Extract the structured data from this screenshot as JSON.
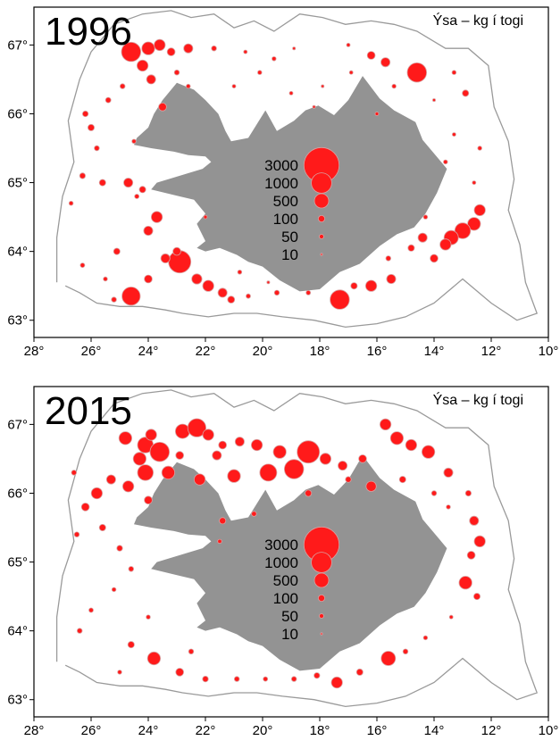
{
  "panels": [
    {
      "year": "1996",
      "species_label": "Ýsa – kg í togi",
      "x_ticks": [
        "28°",
        "26°",
        "24°",
        "22°",
        "20°",
        "18°",
        "16°",
        "14°",
        "12°",
        "10°"
      ],
      "y_ticks": [
        "67°",
        "66°",
        "65°",
        "64°",
        "63°"
      ],
      "legend": [
        {
          "label": "3000",
          "value": 3000
        },
        {
          "label": "1000",
          "value": 1000
        },
        {
          "label": "500",
          "value": 500
        },
        {
          "label": "100",
          "value": 100
        },
        {
          "label": "50",
          "value": 50
        },
        {
          "label": "10",
          "value": 10
        }
      ]
    },
    {
      "year": "2015",
      "species_label": "Ýsa – kg í togi",
      "x_ticks": [
        "28°",
        "26°",
        "24°",
        "22°",
        "20°",
        "18°",
        "16°",
        "14°",
        "12°",
        "10°"
      ],
      "y_ticks": [
        "67°",
        "66°",
        "65°",
        "64°",
        "63°"
      ],
      "legend": [
        {
          "label": "3000",
          "value": 3000
        },
        {
          "label": "1000",
          "value": 1000
        },
        {
          "label": "500",
          "value": 500
        },
        {
          "label": "100",
          "value": 100
        },
        {
          "label": "50",
          "value": 50
        },
        {
          "label": "10",
          "value": 10
        }
      ]
    }
  ],
  "colors": {
    "bubble": "#ff1a1a",
    "land": "#939393",
    "contour": "#9a9a9a"
  },
  "stations_1996": [
    [
      24.6,
      66.9,
      900
    ],
    [
      24.0,
      66.95,
      400
    ],
    [
      23.6,
      67.0,
      300
    ],
    [
      23.2,
      66.9,
      150
    ],
    [
      22.6,
      66.95,
      200
    ],
    [
      21.7,
      66.95,
      60
    ],
    [
      20.6,
      66.9,
      30
    ],
    [
      19.6,
      66.8,
      40
    ],
    [
      18.9,
      66.95,
      20
    ],
    [
      17.0,
      67.0,
      30
    ],
    [
      16.2,
      66.85,
      150
    ],
    [
      15.7,
      66.75,
      200
    ],
    [
      14.6,
      66.6,
      900
    ],
    [
      13.3,
      66.6,
      40
    ],
    [
      12.9,
      66.3,
      100
    ],
    [
      12.4,
      65.5,
      40
    ],
    [
      12.6,
      65.0,
      30
    ],
    [
      12.4,
      64.6,
      300
    ],
    [
      12.6,
      64.4,
      400
    ],
    [
      13.0,
      64.3,
      600
    ],
    [
      13.4,
      64.2,
      500
    ],
    [
      13.6,
      64.1,
      300
    ],
    [
      14.0,
      63.9,
      150
    ],
    [
      14.4,
      64.2,
      200
    ],
    [
      14.8,
      64.05,
      100
    ],
    [
      15.5,
      63.6,
      200
    ],
    [
      16.2,
      63.5,
      300
    ],
    [
      16.8,
      63.5,
      100
    ],
    [
      17.3,
      63.3,
      900
    ],
    [
      18.4,
      63.4,
      50
    ],
    [
      19.5,
      63.4,
      60
    ],
    [
      20.5,
      63.35,
      50
    ],
    [
      21.1,
      63.3,
      120
    ],
    [
      21.4,
      63.4,
      200
    ],
    [
      21.9,
      63.5,
      300
    ],
    [
      22.3,
      63.6,
      250
    ],
    [
      22.9,
      63.85,
      1200
    ],
    [
      23.4,
      63.9,
      200
    ],
    [
      24.0,
      63.6,
      150
    ],
    [
      24.6,
      63.35,
      800
    ],
    [
      25.2,
      63.3,
      60
    ],
    [
      25.5,
      63.6,
      40
    ],
    [
      26.3,
      63.8,
      50
    ],
    [
      25.1,
      64.0,
      100
    ],
    [
      24.0,
      64.3,
      200
    ],
    [
      23.7,
      64.5,
      300
    ],
    [
      24.4,
      64.8,
      50
    ],
    [
      24.7,
      65.0,
      200
    ],
    [
      25.6,
      65.0,
      100
    ],
    [
      26.3,
      65.1,
      80
    ],
    [
      26.7,
      64.7,
      40
    ],
    [
      25.8,
      65.5,
      60
    ],
    [
      26.0,
      65.8,
      100
    ],
    [
      26.2,
      66.0,
      80
    ],
    [
      25.4,
      66.2,
      70
    ],
    [
      24.9,
      66.4,
      60
    ],
    [
      23.9,
      66.5,
      200
    ],
    [
      23.5,
      66.1,
      150
    ],
    [
      22.6,
      66.4,
      40
    ],
    [
      21.0,
      66.4,
      30
    ],
    [
      20.1,
      66.6,
      40
    ],
    [
      19.0,
      66.3,
      30
    ],
    [
      17.9,
      66.4,
      20
    ],
    [
      16.9,
      66.6,
      30
    ],
    [
      15.4,
      66.4,
      40
    ],
    [
      14.0,
      66.2,
      20
    ],
    [
      13.3,
      65.7,
      30
    ],
    [
      13.6,
      65.3,
      40
    ],
    [
      24.2,
      64.9,
      100
    ],
    [
      24.5,
      65.6,
      40
    ],
    [
      23.0,
      64.0,
      150
    ],
    [
      22.0,
      64.5,
      30
    ],
    [
      20.8,
      63.7,
      40
    ],
    [
      19.8,
      63.55,
      20
    ],
    [
      24.2,
      66.7,
      300
    ],
    [
      23.0,
      66.6,
      60
    ],
    [
      18.2,
      66.1,
      20
    ],
    [
      16.0,
      66.0,
      30
    ],
    [
      15.6,
      63.9,
      60
    ],
    [
      14.3,
      64.5,
      40
    ]
  ],
  "stations_2015": [
    [
      24.8,
      66.8,
      400
    ],
    [
      24.1,
      66.7,
      600
    ],
    [
      23.6,
      66.6,
      900
    ],
    [
      22.8,
      66.9,
      500
    ],
    [
      22.3,
      66.95,
      800
    ],
    [
      21.9,
      66.85,
      300
    ],
    [
      21.4,
      66.7,
      150
    ],
    [
      20.8,
      66.75,
      200
    ],
    [
      20.2,
      66.7,
      300
    ],
    [
      19.4,
      66.6,
      400
    ],
    [
      18.4,
      66.6,
      1200
    ],
    [
      17.8,
      66.5,
      300
    ],
    [
      17.2,
      66.4,
      200
    ],
    [
      16.5,
      66.5,
      150
    ],
    [
      15.7,
      67.0,
      300
    ],
    [
      15.3,
      66.8,
      400
    ],
    [
      14.8,
      66.7,
      300
    ],
    [
      14.2,
      66.6,
      400
    ],
    [
      13.5,
      66.3,
      200
    ],
    [
      12.8,
      66.0,
      80
    ],
    [
      12.6,
      65.6,
      200
    ],
    [
      12.4,
      65.3,
      300
    ],
    [
      12.7,
      65.1,
      150
    ],
    [
      12.9,
      64.7,
      400
    ],
    [
      12.5,
      64.5,
      100
    ],
    [
      18.9,
      66.35,
      900
    ],
    [
      19.8,
      66.3,
      700
    ],
    [
      21.0,
      66.25,
      400
    ],
    [
      22.2,
      66.2,
      300
    ],
    [
      23.3,
      66.3,
      400
    ],
    [
      24.1,
      66.3,
      600
    ],
    [
      24.7,
      66.1,
      300
    ],
    [
      25.3,
      66.2,
      200
    ],
    [
      25.8,
      66.0,
      300
    ],
    [
      26.2,
      65.8,
      150
    ],
    [
      25.6,
      65.5,
      100
    ],
    [
      26.5,
      65.4,
      60
    ],
    [
      25.0,
      65.2,
      80
    ],
    [
      24.6,
      64.9,
      60
    ],
    [
      25.2,
      64.6,
      40
    ],
    [
      26.0,
      64.3,
      50
    ],
    [
      26.4,
      64.0,
      60
    ],
    [
      24.6,
      63.8,
      100
    ],
    [
      23.8,
      63.6,
      400
    ],
    [
      22.9,
      63.4,
      150
    ],
    [
      22.0,
      63.3,
      80
    ],
    [
      20.9,
      63.3,
      60
    ],
    [
      19.9,
      63.3,
      50
    ],
    [
      18.9,
      63.3,
      60
    ],
    [
      18.1,
      63.35,
      80
    ],
    [
      17.4,
      63.25,
      300
    ],
    [
      16.6,
      63.4,
      100
    ],
    [
      15.6,
      63.6,
      500
    ],
    [
      15.0,
      63.7,
      60
    ],
    [
      14.3,
      63.9,
      40
    ],
    [
      13.4,
      64.2,
      30
    ],
    [
      21.4,
      65.6,
      100
    ],
    [
      20.3,
      65.7,
      60
    ],
    [
      21.6,
      66.55,
      200
    ],
    [
      22.9,
      66.55,
      150
    ],
    [
      23.9,
      66.85,
      300
    ],
    [
      16.2,
      66.1,
      250
    ],
    [
      15.1,
      66.2,
      100
    ],
    [
      14.0,
      66.0,
      60
    ],
    [
      13.5,
      65.8,
      40
    ],
    [
      21.5,
      65.3,
      40
    ],
    [
      24.0,
      65.9,
      150
    ],
    [
      24.3,
      66.5,
      400
    ],
    [
      18.4,
      66.0,
      100
    ],
    [
      17.0,
      66.2,
      80
    ],
    [
      26.6,
      66.3,
      60
    ],
    [
      25.0,
      63.4,
      40
    ],
    [
      22.5,
      63.7,
      60
    ],
    [
      24.0,
      64.2,
      40
    ]
  ]
}
